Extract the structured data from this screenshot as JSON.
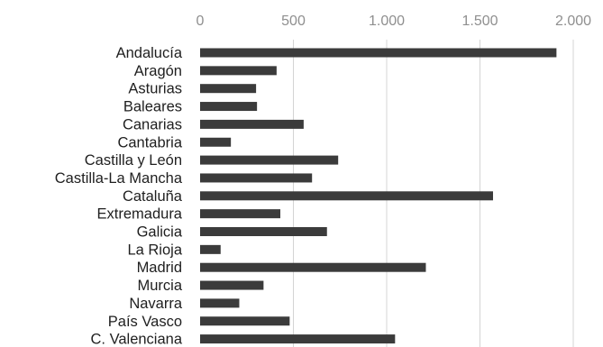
{
  "chart_data": {
    "type": "bar",
    "orientation": "horizontal",
    "categories": [
      "Andalucía",
      "Aragón",
      "Asturias",
      "Baleares",
      "Canarias",
      "Cantabria",
      "Castilla y León",
      "Castilla-La Mancha",
      "Cataluña",
      "Extremadura",
      "Galicia",
      "La Rioja",
      "Madrid",
      "Murcia",
      "Navarra",
      "País Vasco",
      "C. Valenciana"
    ],
    "values": [
      1910,
      410,
      300,
      305,
      555,
      165,
      740,
      600,
      1570,
      430,
      680,
      110,
      1210,
      340,
      210,
      480,
      1045
    ],
    "xlim": [
      0,
      2000
    ],
    "ticks": [
      0,
      500,
      1000,
      1500,
      2000
    ],
    "tick_labels": [
      "0",
      "500",
      "1.000",
      "1.500",
      "2.000"
    ],
    "title": "",
    "xlabel": "",
    "ylabel": "",
    "grid": true,
    "axis_position": "top",
    "bar_color": "#3b3b3b"
  }
}
